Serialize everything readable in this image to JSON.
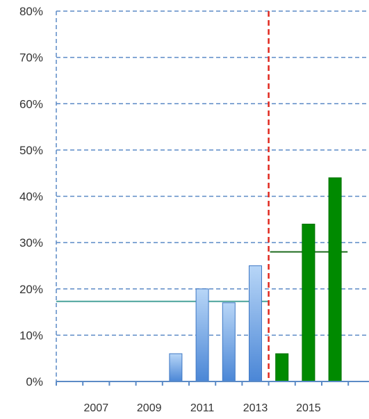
{
  "chart_data": {
    "type": "bar",
    "title": "",
    "xlabel": "",
    "ylabel": "",
    "ylim": [
      0,
      80
    ],
    "y_ticks": [
      {
        "value": 0,
        "label": "0%"
      },
      {
        "value": 10,
        "label": "10%"
      },
      {
        "value": 20,
        "label": "20%"
      },
      {
        "value": 30,
        "label": "30%"
      },
      {
        "value": 40,
        "label": "40%"
      },
      {
        "value": 50,
        "label": "50%"
      },
      {
        "value": 60,
        "label": "60%"
      },
      {
        "value": 70,
        "label": "70%"
      },
      {
        "value": 80,
        "label": "80%"
      }
    ],
    "x": [
      2006,
      2007,
      2008,
      2009,
      2010,
      2011,
      2012,
      2013,
      2014,
      2015,
      2016
    ],
    "x_tick_labels": [
      "2007",
      "2009",
      "2011",
      "2013",
      "2015"
    ],
    "grid": true,
    "series": [
      {
        "color": "#7fb0ea",
        "x": [
          2010,
          2011,
          2012,
          2013
        ],
        "values": [
          6,
          20,
          17,
          25
        ]
      },
      {
        "color": "#008a00",
        "x": [
          2014,
          2015,
          2016
        ],
        "values": [
          6,
          34,
          44
        ]
      }
    ],
    "reference_lines": [
      {
        "kind": "average",
        "color": "#4aa39b",
        "value": 17.3,
        "from_x": 2006,
        "to_x": 2013
      },
      {
        "kind": "average",
        "color": "#1e6b1e",
        "value": 28,
        "from_x": 2014,
        "to_x": 2016
      }
    ],
    "divider": {
      "color": "#e0281e",
      "between": [
        2013,
        2014
      ]
    },
    "colors": {
      "grid": "#5b8ac6",
      "axis": "#5b8ac6"
    }
  }
}
